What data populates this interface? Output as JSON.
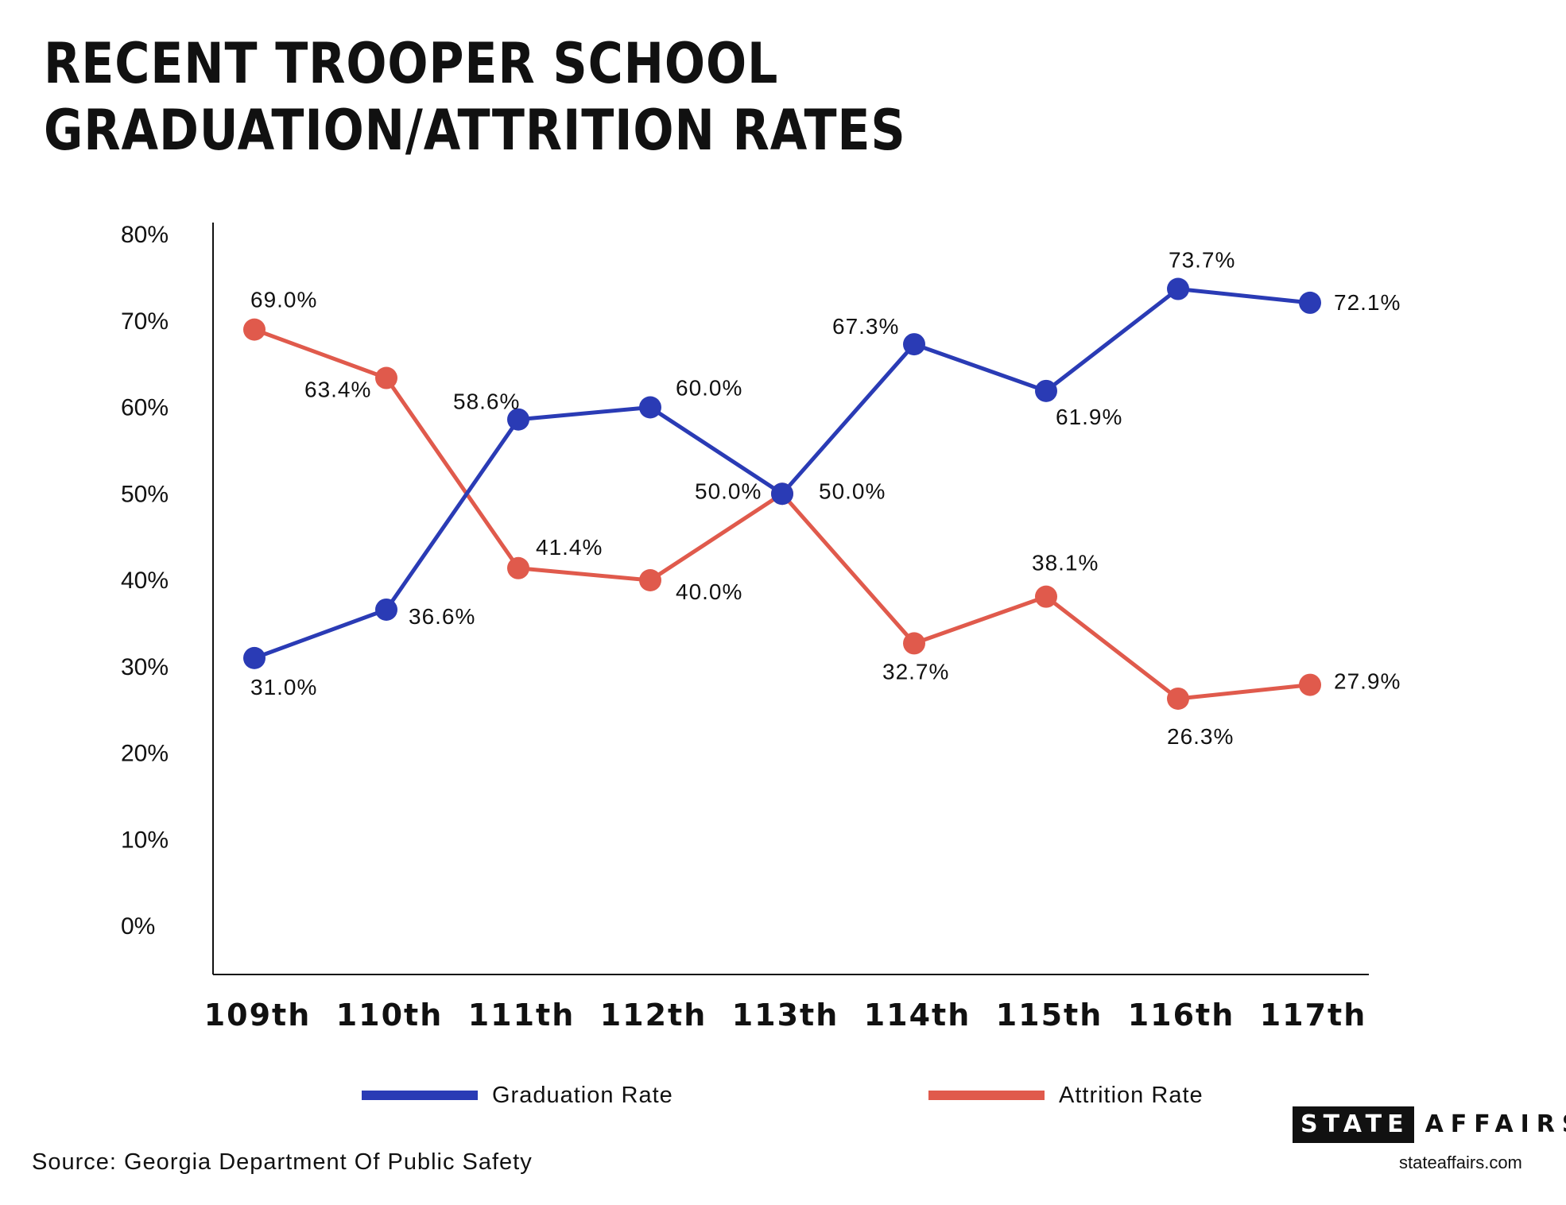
{
  "header": {
    "title": "RECENT TROOPER SCHOOL GRADUATION/ATTRITION RATES"
  },
  "chart_data": {
    "type": "line",
    "title": "RECENT TROOPER SCHOOL GRADUATION/ATTRITION RATES",
    "xlabel": "",
    "ylabel": "",
    "categories": [
      "109th",
      "110th",
      "111th",
      "112th",
      "113th",
      "114th",
      "115th",
      "116th",
      "117th"
    ],
    "ylim": [
      0,
      80
    ],
    "yticks": [
      "0%",
      "10%",
      "20%",
      "30%",
      "40%",
      "50%",
      "60%",
      "70%",
      "80%"
    ],
    "grid": false,
    "legend_position": "bottom",
    "series": [
      {
        "name": "Graduation Rate",
        "color": "#2a3bb5",
        "values": [
          31.0,
          36.6,
          58.6,
          60.0,
          50.0,
          67.3,
          61.9,
          73.7,
          72.1
        ],
        "labels": [
          "31.0%",
          "36.6%",
          "58.6%",
          "60.0%",
          "50.0%",
          "67.3%",
          "61.9%",
          "73.7%",
          "72.1%"
        ]
      },
      {
        "name": "Attrition Rate",
        "color": "#e05a4c",
        "values": [
          69.0,
          63.4,
          41.4,
          40.0,
          50.0,
          32.7,
          38.1,
          26.3,
          27.9
        ],
        "labels": [
          "69.0%",
          "63.4%",
          "41.4%",
          "40.0%",
          "50.0%",
          "32.7%",
          "38.1%",
          "26.3%",
          "27.9%"
        ]
      }
    ]
  },
  "footer": {
    "source": "Source: Georgia Department Of Public Safety",
    "brand_boxed": "STATE",
    "brand_rest": "AFFAIRS",
    "website": "stateaffairs.com"
  }
}
